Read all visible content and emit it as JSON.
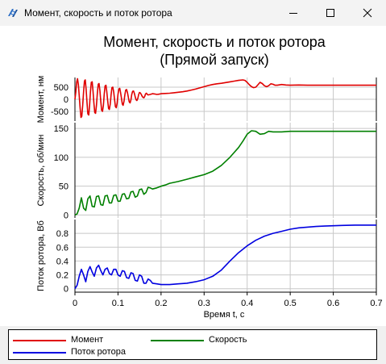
{
  "window": {
    "title": "Момент, скорость и поток ротора",
    "buttons": [
      "minimize-button",
      "maximize-button",
      "close-button"
    ]
  },
  "chart_data": {
    "type": "line",
    "title": "Момент, скорость и поток ротора",
    "subtitle": "(Прямой запуск)",
    "xlabel": "Время t, с",
    "xlim": [
      0,
      0.7
    ],
    "xticks": [
      "0",
      "0.1",
      "0.2",
      "0.3",
      "0.4",
      "0.5",
      "0.6",
      "0.7"
    ],
    "grid": true,
    "legend_position": "bottom",
    "panels": [
      {
        "name": "Момент",
        "ylabel": "Момент, нм",
        "ylim": [
          -900,
          900
        ],
        "yticks": [
          "500",
          "0",
          "-500"
        ],
        "ytick_values": [
          500,
          0,
          -500
        ],
        "color": "#e00000",
        "x": [
          0,
          0.002,
          0.004,
          0.006,
          0.008,
          0.01,
          0.012,
          0.014,
          0.016,
          0.018,
          0.02,
          0.022,
          0.024,
          0.026,
          0.028,
          0.03,
          0.032,
          0.034,
          0.036,
          0.038,
          0.04,
          0.042,
          0.044,
          0.046,
          0.048,
          0.05,
          0.052,
          0.054,
          0.056,
          0.058,
          0.06,
          0.062,
          0.064,
          0.066,
          0.068,
          0.07,
          0.072,
          0.074,
          0.076,
          0.078,
          0.08,
          0.082,
          0.084,
          0.086,
          0.088,
          0.09,
          0.092,
          0.094,
          0.096,
          0.098,
          0.1,
          0.102,
          0.104,
          0.106,
          0.108,
          0.11,
          0.112,
          0.114,
          0.116,
          0.118,
          0.12,
          0.122,
          0.124,
          0.126,
          0.128,
          0.13,
          0.132,
          0.134,
          0.136,
          0.138,
          0.14,
          0.142,
          0.144,
          0.146,
          0.148,
          0.15,
          0.152,
          0.154,
          0.156,
          0.158,
          0.16,
          0.162,
          0.164,
          0.166,
          0.168,
          0.17,
          0.175,
          0.18,
          0.185,
          0.19,
          0.195,
          0.2,
          0.21,
          0.22,
          0.23,
          0.24,
          0.25,
          0.26,
          0.27,
          0.28,
          0.29,
          0.3,
          0.31,
          0.32,
          0.33,
          0.34,
          0.35,
          0.36,
          0.37,
          0.38,
          0.39,
          0.395,
          0.4,
          0.405,
          0.41,
          0.415,
          0.42,
          0.425,
          0.43,
          0.435,
          0.44,
          0.445,
          0.45,
          0.455,
          0.46,
          0.465,
          0.47,
          0.48,
          0.49,
          0.5,
          0.52,
          0.54,
          0.56,
          0.58,
          0.6,
          0.62,
          0.64,
          0.66,
          0.68,
          0.7
        ],
        "values": [
          0,
          300,
          700,
          850,
          600,
          150,
          -350,
          -750,
          -700,
          -250,
          300,
          750,
          800,
          400,
          -150,
          -600,
          -650,
          -250,
          300,
          700,
          720,
          350,
          -150,
          -550,
          -580,
          -250,
          250,
          620,
          650,
          350,
          -100,
          -450,
          -500,
          -250,
          200,
          550,
          580,
          320,
          -50,
          -380,
          -420,
          -200,
          200,
          480,
          500,
          300,
          -20,
          -300,
          -350,
          -150,
          200,
          420,
          450,
          280,
          50,
          -200,
          -250,
          -80,
          200,
          380,
          400,
          270,
          80,
          -100,
          -150,
          -20,
          200,
          330,
          340,
          250,
          100,
          -20,
          -50,
          30,
          200,
          280,
          260,
          200,
          130,
          80,
          60,
          120,
          220,
          250,
          200,
          180,
          200,
          230,
          220,
          200,
          210,
          230,
          240,
          250,
          270,
          290,
          310,
          340,
          380,
          420,
          470,
          520,
          570,
          610,
          640,
          660,
          690,
          720,
          750,
          780,
          800,
          780,
          700,
          600,
          520,
          480,
          500,
          600,
          700,
          650,
          560,
          520,
          560,
          640,
          620,
          580,
          580,
          610,
          590,
          580,
          590,
          580,
          580,
          580,
          580,
          580,
          580,
          580,
          580,
          580
        ]
      },
      {
        "name": "Скорость",
        "ylabel": "Скорость, об/мин",
        "ylim": [
          -5,
          160
        ],
        "yticks": [
          "150",
          "100",
          "50",
          "0"
        ],
        "ytick_values": [
          150,
          100,
          50,
          0
        ],
        "color": "#008000",
        "x": [
          0,
          0.005,
          0.01,
          0.015,
          0.02,
          0.025,
          0.03,
          0.035,
          0.04,
          0.045,
          0.05,
          0.055,
          0.06,
          0.065,
          0.07,
          0.075,
          0.08,
          0.085,
          0.09,
          0.095,
          0.1,
          0.105,
          0.11,
          0.115,
          0.12,
          0.125,
          0.13,
          0.135,
          0.14,
          0.145,
          0.15,
          0.155,
          0.16,
          0.165,
          0.17,
          0.175,
          0.18,
          0.19,
          0.2,
          0.21,
          0.22,
          0.24,
          0.26,
          0.28,
          0.3,
          0.32,
          0.34,
          0.36,
          0.38,
          0.39,
          0.4,
          0.41,
          0.42,
          0.43,
          0.44,
          0.45,
          0.46,
          0.48,
          0.5,
          0.55,
          0.6,
          0.65,
          0.7
        ],
        "values": [
          0,
          2,
          12,
          30,
          12,
          8,
          28,
          33,
          15,
          14,
          32,
          33,
          18,
          17,
          33,
          34,
          21,
          21,
          34,
          35,
          24,
          24,
          36,
          37,
          28,
          29,
          40,
          41,
          31,
          33,
          44,
          45,
          36,
          39,
          48,
          47,
          45,
          47,
          50,
          52,
          55,
          58,
          62,
          66,
          70,
          76,
          86,
          100,
          117,
          128,
          140,
          146,
          145,
          140,
          141,
          145,
          144,
          144,
          145,
          145,
          145,
          145,
          145
        ]
      },
      {
        "name": "Поток ротора",
        "ylabel": "Поток ротора, Вб",
        "ylim": [
          -0.05,
          1.0
        ],
        "yticks": [
          "0.8",
          "0.6",
          "0.4",
          "0.2",
          "0"
        ],
        "ytick_values": [
          0.8,
          0.6,
          0.4,
          0.2,
          0
        ],
        "color": "#0000e0",
        "x": [
          0,
          0.005,
          0.01,
          0.015,
          0.02,
          0.025,
          0.03,
          0.035,
          0.04,
          0.045,
          0.05,
          0.055,
          0.06,
          0.065,
          0.07,
          0.075,
          0.08,
          0.085,
          0.09,
          0.095,
          0.1,
          0.105,
          0.11,
          0.115,
          0.12,
          0.125,
          0.13,
          0.135,
          0.14,
          0.145,
          0.15,
          0.155,
          0.16,
          0.165,
          0.17,
          0.175,
          0.18,
          0.19,
          0.2,
          0.22,
          0.24,
          0.26,
          0.28,
          0.3,
          0.32,
          0.34,
          0.36,
          0.38,
          0.4,
          0.42,
          0.44,
          0.46,
          0.48,
          0.5,
          0.52,
          0.54,
          0.56,
          0.58,
          0.6,
          0.62,
          0.65,
          0.7
        ],
        "values": [
          0,
          0.05,
          0.18,
          0.28,
          0.2,
          0.1,
          0.25,
          0.32,
          0.24,
          0.18,
          0.3,
          0.34,
          0.26,
          0.2,
          0.28,
          0.3,
          0.22,
          0.2,
          0.28,
          0.28,
          0.2,
          0.18,
          0.26,
          0.25,
          0.16,
          0.15,
          0.23,
          0.22,
          0.12,
          0.11,
          0.2,
          0.18,
          0.08,
          0.08,
          0.14,
          0.12,
          0.08,
          0.07,
          0.06,
          0.06,
          0.07,
          0.08,
          0.1,
          0.13,
          0.18,
          0.27,
          0.4,
          0.52,
          0.62,
          0.7,
          0.76,
          0.8,
          0.83,
          0.86,
          0.88,
          0.89,
          0.9,
          0.905,
          0.91,
          0.915,
          0.92,
          0.92
        ]
      }
    ]
  },
  "legend": {
    "items": [
      {
        "label": "Момент",
        "color": "#e00000"
      },
      {
        "label": "Скорость",
        "color": "#008000"
      },
      {
        "label": "Поток ротора",
        "color": "#0000e0"
      }
    ]
  }
}
